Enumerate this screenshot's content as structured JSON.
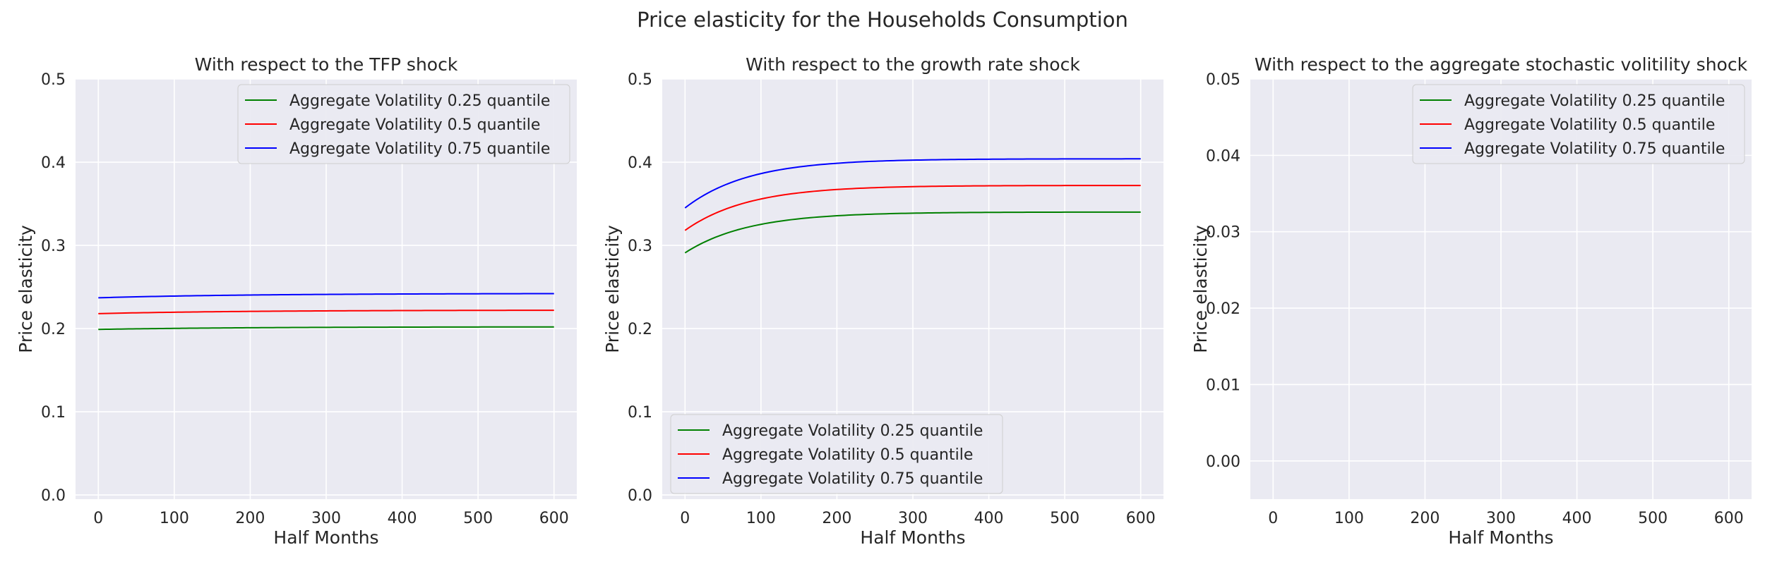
{
  "figure": {
    "title": "Price elasticity for the Households Consumption"
  },
  "chart_data": [
    {
      "type": "line",
      "title": "With respect to the TFP shock",
      "xlabel": "Half Months",
      "ylabel": "Price elasticity",
      "xlim": [
        -30,
        630
      ],
      "ylim": [
        -0.005,
        0.5
      ],
      "xticks": [
        0,
        100,
        200,
        300,
        400,
        500,
        600
      ],
      "yticks": [
        0.0,
        0.1,
        0.2,
        0.3,
        0.4,
        0.5
      ],
      "ytick_decimals": 1,
      "legend": "top-right",
      "grid": true,
      "series": [
        {
          "name": "Aggregate Volatility 0.25 quantile",
          "color": "#008000",
          "x": [
            0,
            600
          ],
          "start": 0.199,
          "end": 0.202,
          "rate": 0.005
        },
        {
          "name": "Aggregate Volatility 0.5 quantile",
          "color": "#ff0000",
          "x": [
            0,
            600
          ],
          "start": 0.218,
          "end": 0.222,
          "rate": 0.005
        },
        {
          "name": "Aggregate Volatility 0.75 quantile",
          "color": "#0000ff",
          "x": [
            0,
            600
          ],
          "start": 0.237,
          "end": 0.242,
          "rate": 0.005
        }
      ]
    },
    {
      "type": "line",
      "title": "With respect to the growth rate shock",
      "xlabel": "Half Months",
      "ylabel": "Price elasticity",
      "xlim": [
        -30,
        630
      ],
      "ylim": [
        -0.005,
        0.5
      ],
      "xticks": [
        0,
        100,
        200,
        300,
        400,
        500,
        600
      ],
      "yticks": [
        0.0,
        0.1,
        0.2,
        0.3,
        0.4,
        0.5
      ],
      "ytick_decimals": 1,
      "legend": "bottom-left",
      "grid": true,
      "series": [
        {
          "name": "Aggregate Volatility 0.25 quantile",
          "color": "#008000",
          "x": [
            0,
            600
          ],
          "start": 0.291,
          "end": 0.34,
          "rate": 0.012
        },
        {
          "name": "Aggregate Volatility 0.5 quantile",
          "color": "#ff0000",
          "x": [
            0,
            600
          ],
          "start": 0.318,
          "end": 0.372,
          "rate": 0.012
        },
        {
          "name": "Aggregate Volatility 0.75 quantile",
          "color": "#0000ff",
          "x": [
            0,
            600
          ],
          "start": 0.345,
          "end": 0.404,
          "rate": 0.012
        }
      ]
    },
    {
      "type": "line",
      "title": "With respect to the aggregate stochastic volitility shock",
      "xlabel": "Half Months",
      "ylabel": "Price elasticity",
      "xlim": [
        -30,
        630
      ],
      "ylim": [
        -0.005,
        0.05
      ],
      "xticks": [
        0,
        100,
        200,
        300,
        400,
        500,
        600
      ],
      "yticks": [
        0.0,
        0.01,
        0.02,
        0.03,
        0.04,
        0.05
      ],
      "ytick_decimals": 2,
      "legend": "top-right",
      "grid": true,
      "series": [
        {
          "name": "Aggregate Volatility 0.25 quantile",
          "color": "#008000",
          "x": [],
          "start": null,
          "end": null,
          "rate": null
        },
        {
          "name": "Aggregate Volatility 0.5 quantile",
          "color": "#ff0000",
          "x": [],
          "start": null,
          "end": null,
          "rate": null
        },
        {
          "name": "Aggregate Volatility 0.75 quantile",
          "color": "#0000ff",
          "x": [],
          "start": null,
          "end": null,
          "rate": null
        }
      ]
    }
  ],
  "style": {
    "plot_background": "#eaeaf2",
    "grid_color": "#ffffff"
  }
}
